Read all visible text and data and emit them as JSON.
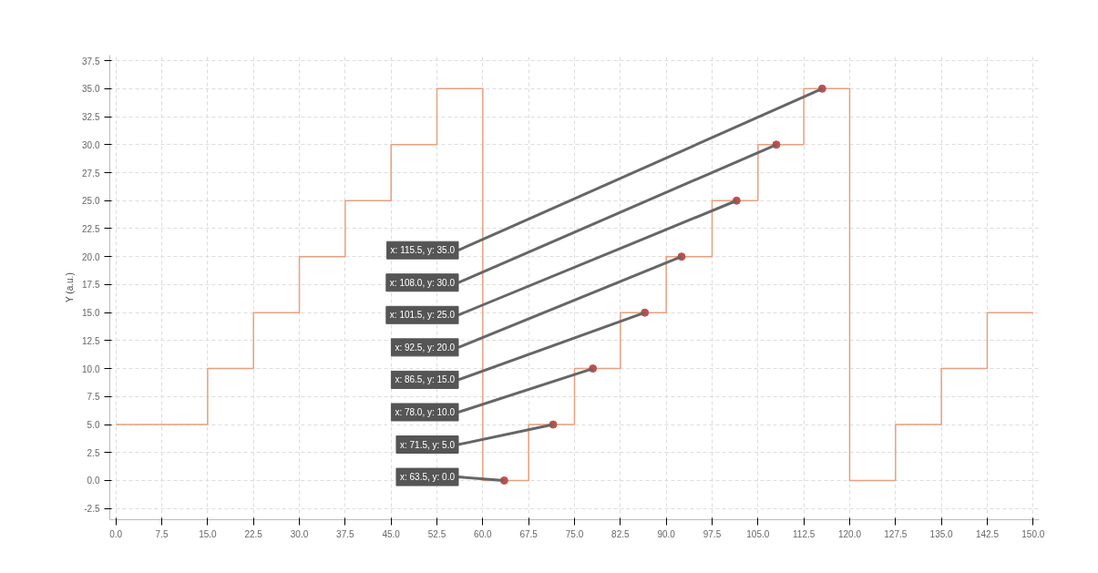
{
  "chart_data": {
    "type": "step",
    "ylabel": "Y (a.u.)",
    "xlim": [
      -1,
      151
    ],
    "ylim": [
      -3.5,
      38
    ],
    "xticks": [
      {
        "value": 0,
        "label": "0.0"
      },
      {
        "value": 7.5,
        "label": "7.5"
      },
      {
        "value": 15,
        "label": "15.0"
      },
      {
        "value": 22.5,
        "label": "22.5"
      },
      {
        "value": 30,
        "label": "30.0"
      },
      {
        "value": 37.5,
        "label": "37.5"
      },
      {
        "value": 45,
        "label": "45.0"
      },
      {
        "value": 52.5,
        "label": "52.5"
      },
      {
        "value": 60,
        "label": "60.0"
      },
      {
        "value": 67.5,
        "label": "67.5"
      },
      {
        "value": 75,
        "label": "75.0"
      },
      {
        "value": 82.5,
        "label": "82.5"
      },
      {
        "value": 90,
        "label": "90.0"
      },
      {
        "value": 97.5,
        "label": "97.5"
      },
      {
        "value": 105,
        "label": "105.0"
      },
      {
        "value": 112.5,
        "label": "112.5"
      },
      {
        "value": 120,
        "label": "120.0"
      },
      {
        "value": 127.5,
        "label": "127.5"
      },
      {
        "value": 135,
        "label": "135.0"
      },
      {
        "value": 142.5,
        "label": "142.5"
      },
      {
        "value": 150,
        "label": "150.0"
      }
    ],
    "yticks": [
      {
        "value": -2.5,
        "label": "-2.5"
      },
      {
        "value": 0,
        "label": "0.0"
      },
      {
        "value": 2.5,
        "label": "2.5"
      },
      {
        "value": 5,
        "label": "5.0"
      },
      {
        "value": 7.5,
        "label": "7.5"
      },
      {
        "value": 10,
        "label": "10.0"
      },
      {
        "value": 12.5,
        "label": "12.5"
      },
      {
        "value": 15,
        "label": "15.0"
      },
      {
        "value": 17.5,
        "label": "17.5"
      },
      {
        "value": 20,
        "label": "20.0"
      },
      {
        "value": 22.5,
        "label": "22.5"
      },
      {
        "value": 25,
        "label": "25.0"
      },
      {
        "value": 27.5,
        "label": "27.5"
      },
      {
        "value": 30,
        "label": "30.0"
      },
      {
        "value": 32.5,
        "label": "32.5"
      },
      {
        "value": 35,
        "label": "35.0"
      },
      {
        "value": 37.5,
        "label": "37.5"
      }
    ],
    "grid": true,
    "series": [
      {
        "color": "#e8a080",
        "x": [
          0,
          15,
          22.5,
          30,
          37.5,
          45,
          52.5,
          60,
          67.5,
          75,
          82.5,
          90,
          97.5,
          105,
          112.5,
          120,
          127.5,
          135,
          142.5,
          150
        ],
        "values": [
          5,
          10,
          15,
          20,
          25,
          30,
          35,
          0,
          5,
          10,
          15,
          20,
          25,
          30,
          35,
          0,
          5,
          10,
          15,
          15
        ]
      },
      {
        "type": "scatter",
        "color": "#c0504d",
        "marker": "circle",
        "x": [
          115.5,
          108,
          101.5,
          92.5,
          86.5,
          78,
          71.5,
          63.5
        ],
        "values": [
          35,
          30,
          25,
          20,
          15,
          10,
          5,
          0
        ]
      }
    ],
    "annotations": [
      {
        "text": "x: 115.5, y: 35.0",
        "x": 115.5,
        "y": 35
      },
      {
        "text": "x: 108.0, y: 30.0",
        "x": 108,
        "y": 30
      },
      {
        "text": "x: 101.5, y: 25.0",
        "x": 101.5,
        "y": 25
      },
      {
        "text": "x: 92.5, y: 20.0",
        "x": 92.5,
        "y": 20
      },
      {
        "text": "x: 86.5, y: 15.0",
        "x": 86.5,
        "y": 15
      },
      {
        "text": "x: 78.0, y: 10.0",
        "x": 78,
        "y": 10
      },
      {
        "text": "x: 71.5, y: 5.0",
        "x": 71.5,
        "y": 5
      },
      {
        "text": "x: 63.5, y: 0.0",
        "x": 63.5,
        "y": 0
      }
    ]
  }
}
